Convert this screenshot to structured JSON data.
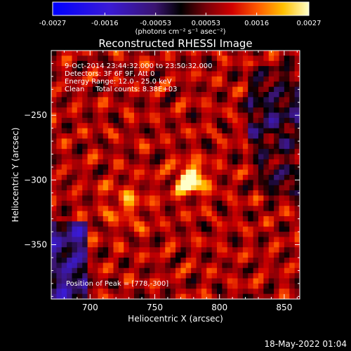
{
  "chart_data": {
    "type": "heatmap",
    "title": "Reconstructed RHESSI Image",
    "colorbar": {
      "tick_labels": [
        "-0.0027",
        "-0.0016",
        "-0.00053",
        "0.00053",
        "0.0016",
        "0.0027"
      ],
      "range": [
        -0.0027,
        0.0027
      ],
      "unit_label": "(photons cm⁻² s⁻¹ asec⁻²)"
    },
    "info_lines": [
      "9-Oct-2014 23:44:32.000 to 23:50:32.000",
      "Detectors: 3F 6F 9F, Att 0",
      "Energy Range: 12.0 - 25.0 keV",
      "Clean     Total counts: 8.38E+03"
    ],
    "peak_label": "Position of Peak = [778,-300]",
    "peak": {
      "x": 778,
      "y": -300
    },
    "xlabel": "Heliocentric X (arcsec)",
    "ylabel": "Heliocentric Y (arcsec)",
    "xlim": [
      670,
      862
    ],
    "ylim": [
      -392,
      -200
    ],
    "x_ticks": [
      700,
      750,
      800,
      850
    ],
    "y_ticks": [
      -250,
      -300,
      -350
    ],
    "timestamp": "18-May-2022 01:04"
  }
}
